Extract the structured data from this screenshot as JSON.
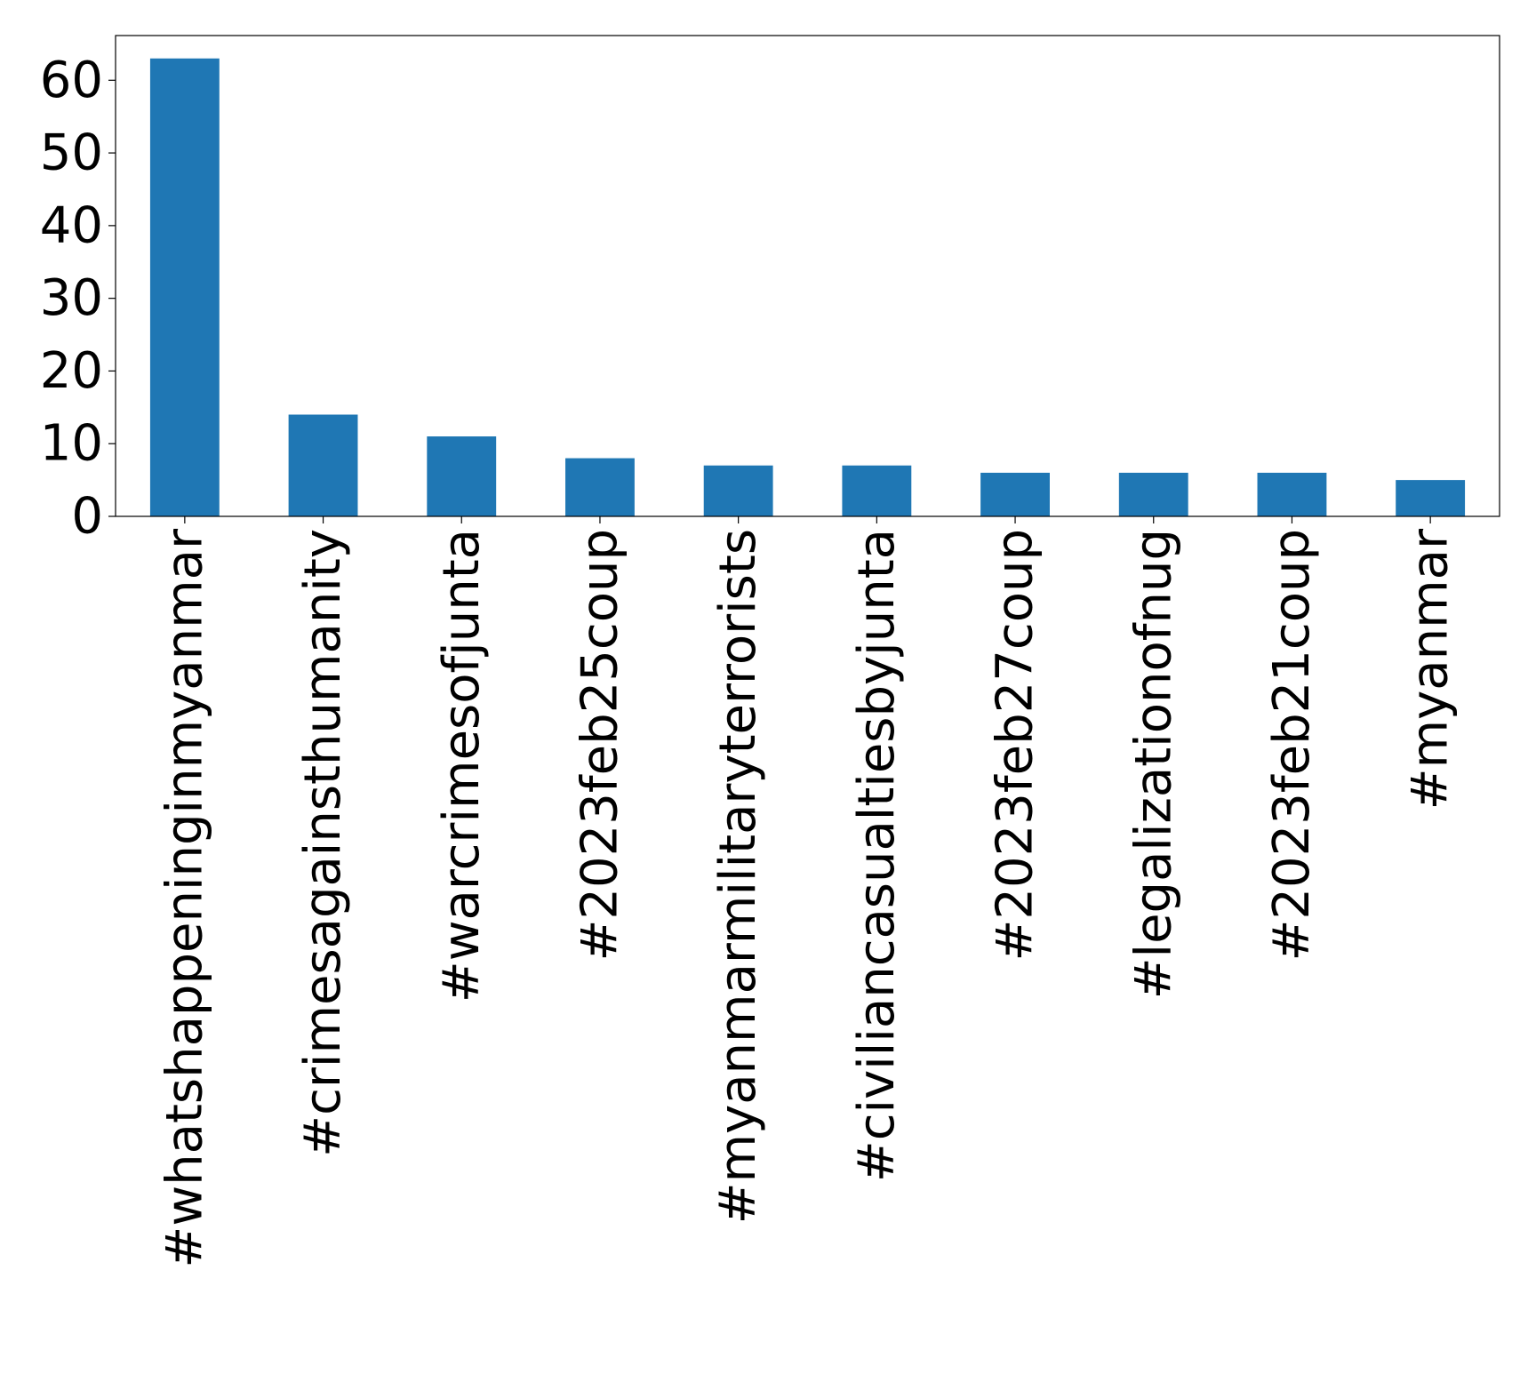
{
  "chart_data": {
    "type": "bar",
    "title": "",
    "xlabel": "",
    "ylabel": "",
    "categories": [
      "#whatshappeninginmyanmar",
      "#crimesagainsthumanity",
      "#warcrimesofjunta",
      "#2023feb25coup",
      "#myanmarmilitaryterrorists",
      "#civiliancasualtiesbyjunta",
      "#2023feb27coup",
      "#legalizationofnug",
      "#2023feb21coup",
      "#myanmar"
    ],
    "values": [
      63,
      14,
      11,
      8,
      7,
      7,
      6,
      6,
      6,
      5
    ],
    "ylim": [
      0,
      66.15
    ],
    "yticks": [
      0,
      10,
      20,
      30,
      40,
      50,
      60
    ],
    "grid": false,
    "legend": "none",
    "bar_color": "#1f77b4"
  }
}
